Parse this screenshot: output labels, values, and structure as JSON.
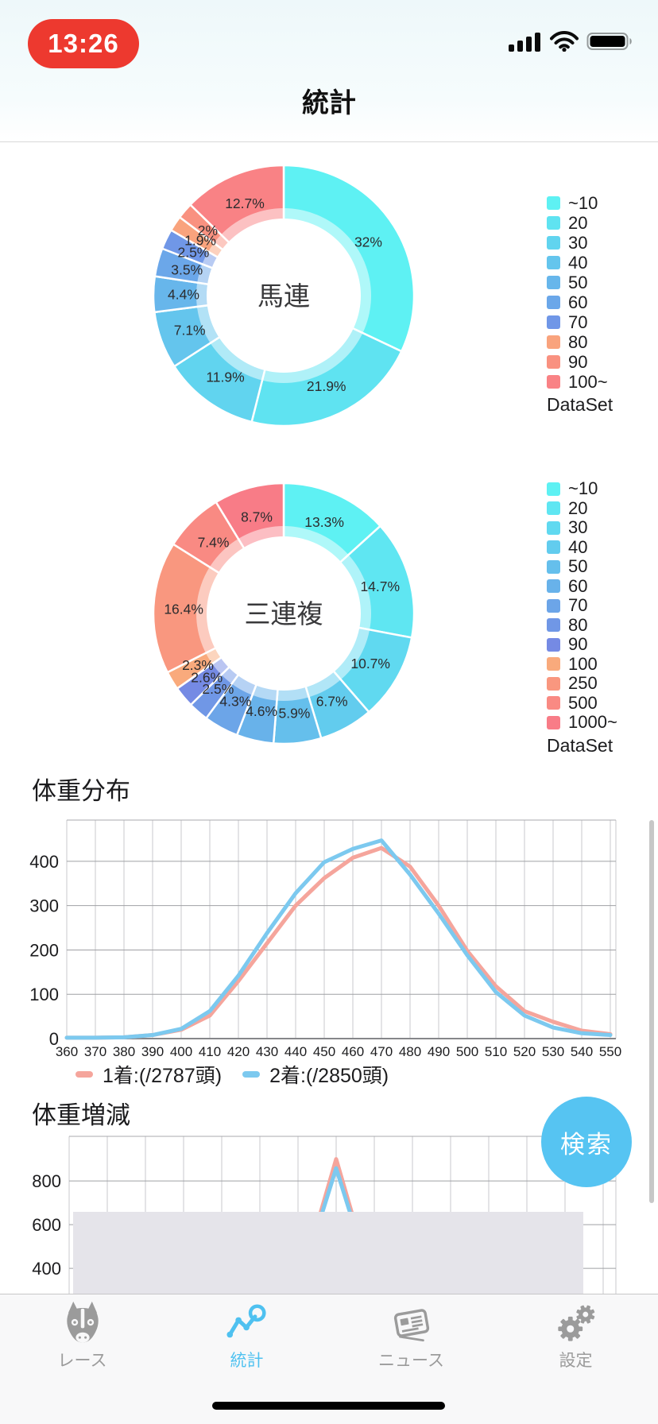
{
  "status_bar": {
    "time": "13:26",
    "pill_color": "#ed392f",
    "icons": [
      "cellular-signal",
      "wifi",
      "battery-full"
    ]
  },
  "nav": {
    "title": "統計"
  },
  "search_button": {
    "label": "検索",
    "color": "#56c4f2"
  },
  "chart_data": [
    {
      "type": "pie",
      "donut": true,
      "center_label": "馬連",
      "legend_position": "right",
      "legend_title": "DataSet",
      "labels": [
        "~10",
        "20",
        "30",
        "40",
        "50",
        "60",
        "70",
        "80",
        "90",
        "100~"
      ],
      "values": [
        32,
        21.9,
        11.9,
        7.1,
        4.4,
        3.5,
        2.5,
        1.9,
        2,
        12.7
      ],
      "value_labels": [
        "32%",
        "21.9%",
        "11.9%",
        "7.1%",
        "4.4%",
        "3.5%",
        "2.5%",
        "1.9%",
        "2%",
        "12.7%"
      ],
      "colors": [
        "#5ef1f3",
        "#5fe3f1",
        "#61d4ef",
        "#64c5ed",
        "#67b6eb",
        "#6ba7e9",
        "#7097e7",
        "#f9a37d",
        "#f99180",
        "#f98285"
      ]
    },
    {
      "type": "pie",
      "donut": true,
      "center_label": "三連複",
      "legend_position": "right",
      "legend_title": "DataSet",
      "labels": [
        "~10",
        "20",
        "30",
        "40",
        "50",
        "60",
        "70",
        "80",
        "90",
        "100",
        "250",
        "500",
        "1000~"
      ],
      "values": [
        13.3,
        14.7,
        10.7,
        6.7,
        5.9,
        4.6,
        4.3,
        2.5,
        2.6,
        2.3,
        16.4,
        7.4,
        8.7
      ],
      "value_labels": [
        "13.3%",
        "14.7%",
        "10.7%",
        "6.7%",
        "5.9%",
        "4.6%",
        "4.3%",
        "2.5%",
        "2.6%",
        "2.3%",
        "16.4%",
        "7.4%",
        "8.7%"
      ],
      "colors": [
        "#5ef1f3",
        "#5fe6f2",
        "#60d9f0",
        "#62ccee",
        "#65bfec",
        "#68b2ea",
        "#6ca5e8",
        "#7097e6",
        "#758ae4",
        "#f9aa7c",
        "#f9977f",
        "#f98a83",
        "#f87c87"
      ]
    },
    {
      "type": "line",
      "title": "体重分布",
      "x": [
        "360",
        "370",
        "380",
        "390",
        "400",
        "410",
        "420",
        "430",
        "440",
        "450",
        "460",
        "470",
        "480",
        "490",
        "500",
        "510",
        "520",
        "530",
        "540",
        "550"
      ],
      "yticks": [
        0,
        100,
        200,
        300,
        400
      ],
      "ylim": [
        0,
        493
      ],
      "grid": true,
      "legend_position": "bottom",
      "series": [
        {
          "name": "1着:(/2787頭)",
          "color": "#f5a59c",
          "values": [
            2,
            2,
            3,
            8,
            20,
            52,
            130,
            215,
            300,
            362,
            408,
            430,
            388,
            300,
            198,
            118,
            62,
            38,
            18,
            10
          ]
        },
        {
          "name": "2着:(/2850頭)",
          "color": "#7cc9ef",
          "values": [
            2,
            2,
            3,
            8,
            22,
            62,
            142,
            238,
            328,
            398,
            428,
            447,
            370,
            282,
            188,
            105,
            52,
            25,
            12,
            8
          ]
        }
      ]
    },
    {
      "type": "line",
      "title": "体重増減",
      "x_count": 15,
      "x_labels_hidden": true,
      "obscured_by_overlay": true,
      "yticks": [
        400,
        600,
        800
      ],
      "ylim": [
        284,
        1004
      ],
      "grid": true,
      "series": [
        {
          "name": "",
          "color": "#f5a59c",
          "values": [
            300,
            300,
            300,
            300,
            300,
            300,
            300,
            900,
            300,
            300,
            300,
            300,
            300,
            300,
            300
          ]
        },
        {
          "name": "",
          "color": "#7cc9ef",
          "values": [
            300,
            300,
            300,
            300,
            300,
            300,
            300,
            858,
            300,
            300,
            300,
            300,
            300,
            300,
            300
          ]
        }
      ]
    }
  ],
  "tab_bar": {
    "active_color": "#4fc1f0",
    "items": [
      {
        "label": "レース",
        "icon": "horse-icon",
        "active": false
      },
      {
        "label": "統計",
        "icon": "stats-chart-icon",
        "active": true
      },
      {
        "label": "ニュース",
        "icon": "news-icon",
        "active": false
      },
      {
        "label": "設定",
        "icon": "settings-gears-icon",
        "active": false
      }
    ]
  }
}
